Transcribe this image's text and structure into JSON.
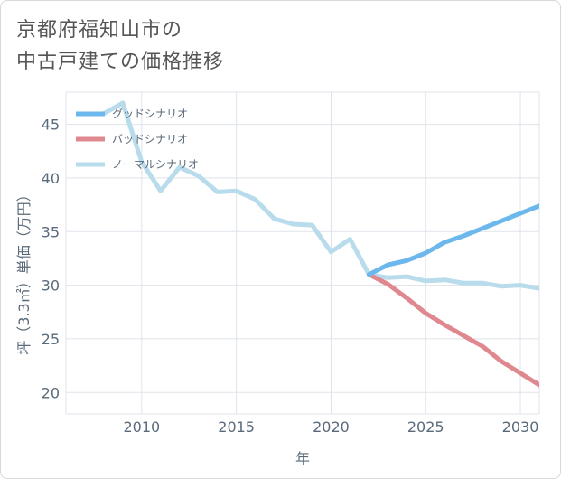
{
  "title_lines": [
    "京都府福知山市の",
    "中古戸建ての価格推移"
  ],
  "chart_data": {
    "type": "line",
    "title": "京都府福知山市の中古戸建ての価格推移",
    "xlabel": "年",
    "ylabel": "坪（3.3㎡）単価（万円）",
    "xlim": [
      2006,
      2031
    ],
    "ylim": [
      18,
      48
    ],
    "xticks": [
      2010,
      2015,
      2020,
      2025,
      2030
    ],
    "yticks": [
      20,
      25,
      30,
      35,
      40,
      45
    ],
    "legend_position": "top-left",
    "series": [
      {
        "name": "グッドシナリオ",
        "color": "#6cb7ec",
        "x": [
          2022,
          2023,
          2024,
          2025,
          2026,
          2027,
          2028,
          2029,
          2030,
          2031
        ],
        "values": [
          31.0,
          31.9,
          32.3,
          33.0,
          34.0,
          34.6,
          35.3,
          36.0,
          36.7,
          37.4
        ]
      },
      {
        "name": "バッドシナリオ",
        "color": "#e0888f",
        "x": [
          2022,
          2023,
          2024,
          2025,
          2026,
          2027,
          2028,
          2029,
          2030,
          2031
        ],
        "values": [
          31.0,
          30.1,
          28.8,
          27.4,
          26.3,
          25.3,
          24.3,
          22.9,
          21.8,
          20.7
        ]
      },
      {
        "name": "ノーマルシナリオ",
        "color": "#b8dcec",
        "x": [
          2008,
          2009,
          2010,
          2011,
          2012,
          2013,
          2014,
          2015,
          2016,
          2017,
          2018,
          2019,
          2020,
          2021,
          2022,
          2023,
          2024,
          2025,
          2026,
          2027,
          2028,
          2029,
          2030,
          2031
        ],
        "values": [
          46.0,
          47.0,
          41.5,
          38.8,
          41.0,
          40.2,
          38.7,
          38.8,
          38.0,
          36.2,
          35.7,
          35.6,
          33.1,
          34.3,
          31.0,
          30.7,
          30.8,
          30.4,
          30.5,
          30.2,
          30.2,
          29.9,
          30.0,
          29.7
        ]
      }
    ]
  }
}
